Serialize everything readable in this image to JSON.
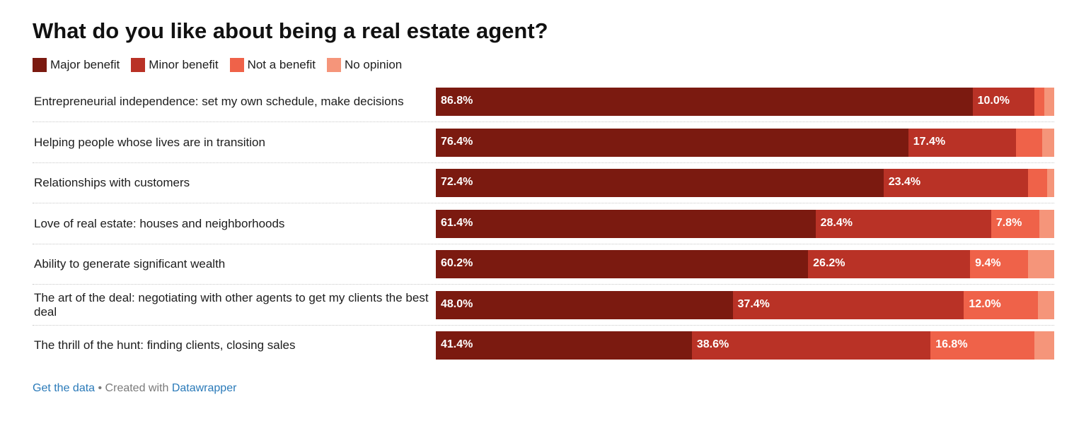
{
  "chart_data": {
    "type": "bar",
    "orientation": "horizontal",
    "stacked": true,
    "title": "What do you like about being a real estate agent?",
    "legend_position": "top-left",
    "categories": [
      "Entrepreneurial independence: set my own schedule, make decisions",
      "Helping people whose lives are in transition",
      "Relationships with customers",
      "Love of real estate: houses and neighborhoods",
      "Ability to generate significant wealth",
      "The art of the deal: negotiating with other agents to get my clients the best deal",
      "The thrill of the hunt: finding clients, closing sales"
    ],
    "series": [
      {
        "name": "Major benefit",
        "color": "#7b1a10",
        "values": [
          86.8,
          76.4,
          72.4,
          61.4,
          60.2,
          48.0,
          41.4
        ],
        "labels": [
          "86.8%",
          "76.4%",
          "72.4%",
          "61.4%",
          "60.2%",
          "48.0%",
          "41.4%"
        ]
      },
      {
        "name": "Minor benefit",
        "color": "#b93226",
        "values": [
          10.0,
          17.4,
          23.4,
          28.4,
          26.2,
          37.4,
          38.6
        ],
        "labels": [
          "10.0%",
          "17.4%",
          "23.4%",
          "28.4%",
          "26.2%",
          "37.4%",
          "38.6%"
        ]
      },
      {
        "name": "Not a benefit",
        "color": "#ef6249",
        "values": [
          1.6,
          4.2,
          3.1,
          7.8,
          9.4,
          12.0,
          16.8
        ],
        "labels": [
          "",
          "",
          "",
          "7.8%",
          "9.4%",
          "12.0%",
          "16.8%"
        ]
      },
      {
        "name": "No opinion",
        "color": "#f5957a",
        "values": [
          1.6,
          2.0,
          1.1,
          2.4,
          4.2,
          2.6,
          3.2
        ],
        "labels": [
          "",
          "",
          "",
          "",
          "",
          "",
          ""
        ]
      }
    ],
    "xlim": [
      0,
      100
    ],
    "grid": false
  },
  "footer": {
    "get_data": "Get the data",
    "separator": " • Created with ",
    "datawrapper": "Datawrapper"
  }
}
